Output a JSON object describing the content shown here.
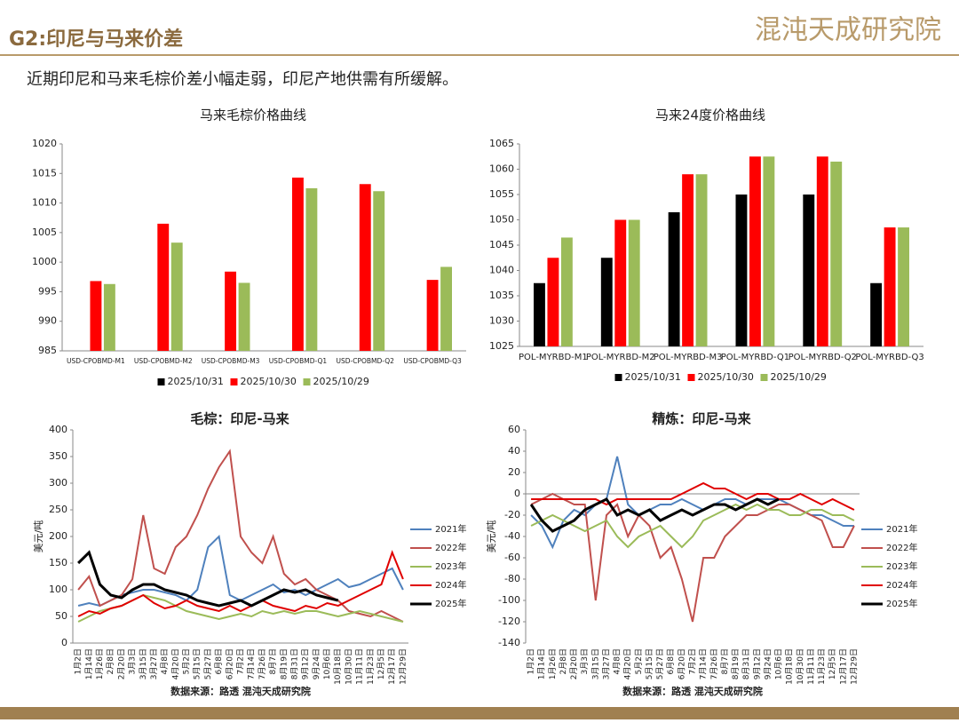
{
  "header": {
    "title": "G2:印尼与马来价差",
    "brand": "混沌天成研究院"
  },
  "subtitle": "近期印尼和马来毛棕价差小幅走弱，印尼产地供需有所缓解。",
  "chart_data": [
    {
      "type": "bar",
      "title": "马来毛棕价格曲线",
      "legend": "bottom",
      "grid": false,
      "categories": [
        "USD-CPOBMD-M1",
        "USD-CPOBMD-M2",
        "USD-CPOBMD-M3",
        "USD-CPOBMD-Q1",
        "USD-CPOBMD-Q2",
        "USD-CPOBMD-Q3"
      ],
      "series": [
        {
          "name": "2025/10/31",
          "color": "#000000",
          "values": [
            null,
            null,
            null,
            null,
            null,
            null
          ]
        },
        {
          "name": "2025/10/30",
          "color": "#ff0000",
          "values": [
            996.8,
            1006.5,
            998.4,
            1014.3,
            1013.2,
            997
          ]
        },
        {
          "name": "2025/10/29",
          "color": "#9bbb59",
          "values": [
            996.3,
            1003.3,
            996.5,
            1012.5,
            1012,
            999.2
          ]
        }
      ],
      "ylim": [
        985,
        1020
      ],
      "yticks": [
        985,
        990,
        995,
        1000,
        1005,
        1010,
        1015,
        1020
      ]
    },
    {
      "type": "bar",
      "title": "马来24度价格曲线",
      "legend": "bottom",
      "grid": false,
      "categories": [
        "POL-MYRBD-M1",
        "POL-MYRBD-M2",
        "POL-MYRBD-M3",
        "POL-MYRBD-Q1",
        "POL-MYRBD-Q2",
        "POL-MYRBD-Q3"
      ],
      "series": [
        {
          "name": "2025/10/31",
          "color": "#000000",
          "values": [
            1037.5,
            1042.5,
            1051.5,
            1055,
            1055,
            1037.5
          ]
        },
        {
          "name": "2025/10/30",
          "color": "#ff0000",
          "values": [
            1042.5,
            1050,
            1059,
            1062.5,
            1062.5,
            1048.5
          ]
        },
        {
          "name": "2025/10/29",
          "color": "#9bbb59",
          "values": [
            1046.5,
            1050,
            1059,
            1062.5,
            1061.5,
            1048.5
          ]
        }
      ],
      "ylim": [
        1025,
        1065
      ],
      "yticks": [
        1025,
        1030,
        1035,
        1040,
        1045,
        1050,
        1055,
        1060,
        1065
      ]
    },
    {
      "type": "line",
      "title": "毛棕：印尼-马来",
      "ylabel": "美元/吨",
      "legend": "right",
      "grid": false,
      "source": "数据来源：路透 混沌天成研究院",
      "categories": [
        "1月2日",
        "1月14日",
        "1月26日",
        "2月8日",
        "2月20日",
        "3月3日",
        "3月15日",
        "3月27日",
        "4月8日",
        "4月20日",
        "5月2日",
        "5月15日",
        "5月27日",
        "6月8日",
        "6月20日",
        "7月2日",
        "7月14日",
        "7月26日",
        "8月7日",
        "8月19日",
        "8月31日",
        "9月12日",
        "9月24日",
        "10月6日",
        "10月18日",
        "10月30日",
        "11月11日",
        "11月23日",
        "12月5日",
        "12月17日",
        "12月29日"
      ],
      "series": [
        {
          "name": "2021年",
          "color": "#4f81bd",
          "values": [
            70,
            75,
            70,
            80,
            90,
            95,
            100,
            100,
            95,
            90,
            80,
            100,
            180,
            200,
            90,
            80,
            90,
            100,
            110,
            95,
            100,
            90,
            100,
            110,
            120,
            105,
            110,
            120,
            130,
            140,
            100
          ]
        },
        {
          "name": "2022年",
          "color": "#c0504d",
          "values": [
            100,
            125,
            70,
            80,
            90,
            120,
            240,
            140,
            130,
            180,
            200,
            240,
            290,
            330,
            360,
            200,
            170,
            150,
            200,
            130,
            110,
            120,
            100,
            90,
            80,
            60,
            55,
            50,
            60,
            50,
            40
          ]
        },
        {
          "name": "2023年",
          "color": "#9bbb59",
          "values": [
            40,
            50,
            60,
            65,
            70,
            80,
            90,
            85,
            80,
            70,
            60,
            55,
            50,
            45,
            50,
            55,
            50,
            60,
            55,
            60,
            55,
            60,
            60,
            55,
            50,
            55,
            60,
            55,
            50,
            45,
            40
          ]
        },
        {
          "name": "2024年",
          "color": "#e00000",
          "values": [
            50,
            60,
            55,
            65,
            70,
            80,
            90,
            75,
            65,
            70,
            80,
            70,
            65,
            60,
            70,
            60,
            70,
            80,
            70,
            65,
            60,
            70,
            65,
            75,
            70,
            80,
            90,
            100,
            110,
            170,
            120
          ]
        },
        {
          "name": "2025年",
          "color": "#000000",
          "values": [
            150,
            170,
            110,
            90,
            85,
            100,
            110,
            110,
            100,
            95,
            90,
            80,
            75,
            70,
            75,
            80,
            70,
            80,
            90,
            100,
            95,
            100,
            90,
            85,
            80,
            null,
            null,
            null,
            null,
            null,
            null
          ]
        }
      ],
      "ylim": [
        0,
        400
      ],
      "yticks": [
        0,
        50,
        100,
        150,
        200,
        250,
        300,
        350,
        400
      ]
    },
    {
      "type": "line",
      "title": "精炼：印尼-马来",
      "ylabel": "美元/吨",
      "legend": "right",
      "grid": false,
      "source": "数据来源：路透 混沌天成研究院",
      "categories": [
        "1月2日",
        "1月14日",
        "1月26日",
        "2月8日",
        "2月20日",
        "3月3日",
        "3月15日",
        "3月27日",
        "4月8日",
        "4月20日",
        "5月2日",
        "5月15日",
        "5月27日",
        "6月8日",
        "6月20日",
        "7月2日",
        "7月14日",
        "7月26日",
        "8月7日",
        "8月19日",
        "8月31日",
        "9月12日",
        "9月24日",
        "10月6日",
        "10月18日",
        "10月30日",
        "11月11日",
        "11月23日",
        "12月5日",
        "12月17日",
        "12月29日"
      ],
      "series": [
        {
          "name": "2021年",
          "color": "#4f81bd",
          "values": [
            -20,
            -30,
            -50,
            -25,
            -15,
            -20,
            -10,
            -5,
            35,
            -10,
            -20,
            -15,
            -10,
            -10,
            -5,
            -10,
            -15,
            -10,
            -5,
            -5,
            -10,
            -5,
            -5,
            -5,
            -10,
            -15,
            -20,
            -20,
            -25,
            -30,
            -30
          ]
        },
        {
          "name": "2022年",
          "color": "#c0504d",
          "values": [
            -10,
            -5,
            0,
            -5,
            -10,
            -10,
            -100,
            -20,
            -10,
            -40,
            -20,
            -30,
            -60,
            -50,
            -80,
            -120,
            -60,
            -60,
            -40,
            -30,
            -20,
            -20,
            -15,
            -10,
            -10,
            -15,
            -20,
            -25,
            -50,
            -50,
            -30
          ]
        },
        {
          "name": "2023年",
          "color": "#9bbb59",
          "values": [
            -30,
            -25,
            -20,
            -25,
            -30,
            -35,
            -30,
            -25,
            -40,
            -50,
            -40,
            -35,
            -30,
            -40,
            -50,
            -40,
            -25,
            -20,
            -15,
            -10,
            -15,
            -10,
            -15,
            -15,
            -20,
            -20,
            -15,
            -15,
            -20,
            -20,
            -25
          ]
        },
        {
          "name": "2024年",
          "color": "#e00000",
          "values": [
            -5,
            -5,
            -5,
            -5,
            -5,
            -5,
            -5,
            -10,
            -5,
            -5,
            -5,
            -5,
            -5,
            -5,
            0,
            5,
            10,
            5,
            5,
            0,
            -5,
            0,
            0,
            -5,
            -5,
            0,
            -5,
            -10,
            -5,
            -10,
            -15
          ]
        },
        {
          "name": "2025年",
          "color": "#000000",
          "values": [
            -10,
            -25,
            -35,
            -30,
            -25,
            -15,
            -10,
            -5,
            -20,
            -15,
            -20,
            -15,
            -25,
            -20,
            -15,
            -20,
            -15,
            -10,
            -10,
            -15,
            -10,
            -5,
            -10,
            -5,
            null,
            null,
            null,
            null,
            null,
            null,
            null
          ]
        }
      ],
      "ylim": [
        -140,
        60
      ],
      "yticks": [
        -140,
        -120,
        -100,
        -80,
        -60,
        -40,
        -20,
        0,
        20,
        40,
        60
      ]
    }
  ]
}
